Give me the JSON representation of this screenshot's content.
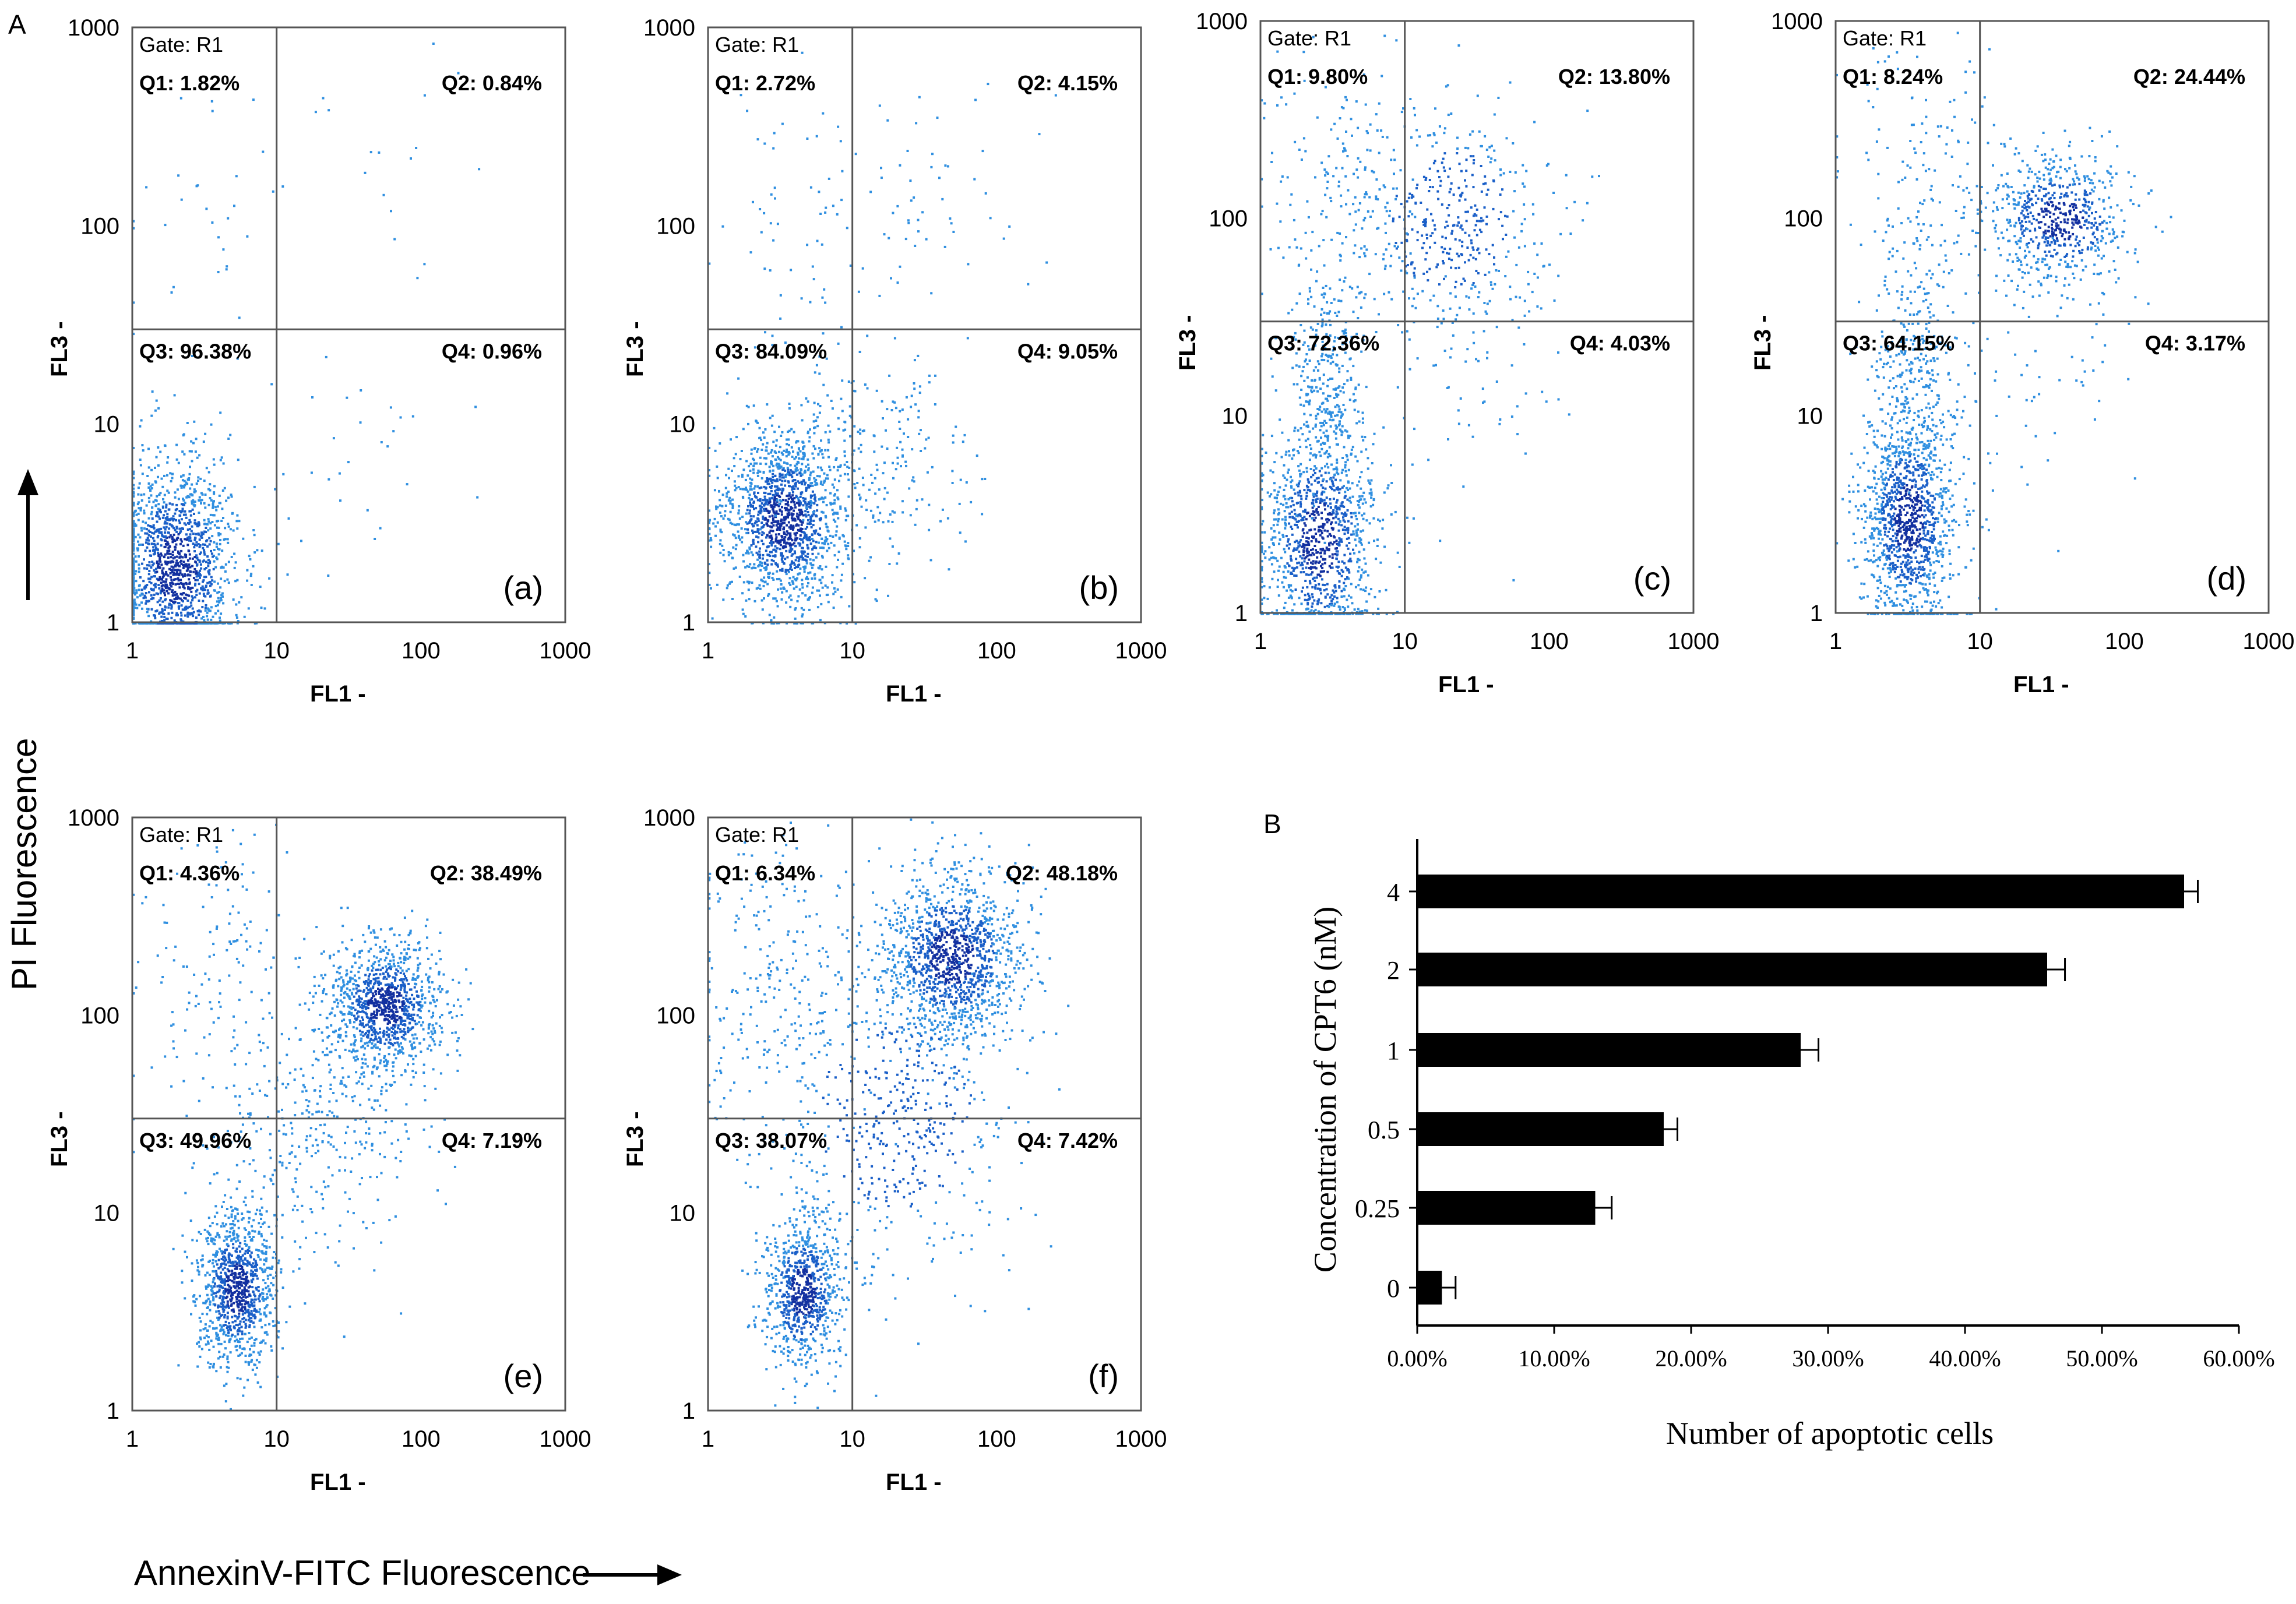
{
  "figure": {
    "panel_a_letter": "A",
    "panel_b_letter": "B",
    "y_axis_title": "PI Fluorescence",
    "x_axis_title": "AnnexinV-FITC Fluorescence"
  },
  "colors": {
    "dots": "#2f8fe0",
    "dots_dense": "#1a5fc8",
    "dots_core": "#1230a0",
    "bar": "#000000"
  },
  "chart_data": [
    {
      "type": "scatter",
      "panel": "(a)",
      "gate": "Gate: R1",
      "quadrants": {
        "q1": "Q1: 1.82%",
        "q2": "Q2: 0.84%",
        "q3": "Q3: 96.38%",
        "q4": "Q4: 0.96%"
      },
      "xlabel": "FL1 -",
      "ylabel": "FL3 -",
      "xticks": [
        "1",
        "10",
        "100",
        "1000"
      ],
      "yticks": [
        "1",
        "10",
        "100",
        "1000"
      ],
      "xlim": [
        1,
        1000
      ],
      "ylim": [
        1,
        1000
      ],
      "scale": "log",
      "gate_lines": {
        "x": 10,
        "y": 30
      }
    },
    {
      "type": "scatter",
      "panel": "(b)",
      "gate": "Gate: R1",
      "quadrants": {
        "q1": "Q1: 2.72%",
        "q2": "Q2: 4.15%",
        "q3": "Q3: 84.09%",
        "q4": "Q4: 9.05%"
      },
      "xlabel": "FL1 -",
      "ylabel": "FL3 -",
      "xticks": [
        "1",
        "10",
        "100",
        "1000"
      ],
      "yticks": [
        "1",
        "10",
        "100",
        "1000"
      ],
      "xlim": [
        1,
        1000
      ],
      "ylim": [
        1,
        1000
      ],
      "scale": "log",
      "gate_lines": {
        "x": 10,
        "y": 30
      }
    },
    {
      "type": "scatter",
      "panel": "(c)",
      "gate": "Gate: R1",
      "quadrants": {
        "q1": "Q1: 9.80%",
        "q2": "Q2: 13.80%",
        "q3": "Q3: 72.36%",
        "q4": "Q4: 4.03%"
      },
      "xlabel": "FL1 -",
      "ylabel": "FL3 -",
      "xticks": [
        "1",
        "10",
        "100",
        "1000"
      ],
      "yticks": [
        "1",
        "10",
        "100",
        "1000"
      ],
      "xlim": [
        1,
        1000
      ],
      "ylim": [
        1,
        1000
      ],
      "scale": "log",
      "gate_lines": {
        "x": 10,
        "y": 30
      }
    },
    {
      "type": "scatter",
      "panel": "(d)",
      "gate": "Gate: R1",
      "quadrants": {
        "q1": "Q1: 8.24%",
        "q2": "Q2: 24.44%",
        "q3": "Q3: 64.15%",
        "q4": "Q4: 3.17%"
      },
      "xlabel": "FL1 -",
      "ylabel": "FL3 -",
      "xticks": [
        "1",
        "10",
        "100",
        "1000"
      ],
      "yticks": [
        "1",
        "10",
        "100",
        "1000"
      ],
      "xlim": [
        1,
        1000
      ],
      "ylim": [
        1,
        1000
      ],
      "scale": "log",
      "gate_lines": {
        "x": 10,
        "y": 30
      }
    },
    {
      "type": "scatter",
      "panel": "(e)",
      "gate": "Gate: R1",
      "quadrants": {
        "q1": "Q1: 4.36%",
        "q2": "Q2: 38.49%",
        "q3": "Q3: 49.96%",
        "q4": "Q4: 7.19%"
      },
      "xlabel": "FL1 -",
      "ylabel": "FL3 -",
      "xticks": [
        "1",
        "10",
        "100",
        "1000"
      ],
      "yticks": [
        "1",
        "10",
        "100",
        "1000"
      ],
      "xlim": [
        1,
        1000
      ],
      "ylim": [
        1,
        1000
      ],
      "scale": "log",
      "gate_lines": {
        "x": 10,
        "y": 30
      }
    },
    {
      "type": "scatter",
      "panel": "(f)",
      "gate": "Gate: R1",
      "quadrants": {
        "q1": "Q1: 6.34%",
        "q2": "Q2: 48.18%",
        "q3": "Q3: 38.07%",
        "q4": "Q4: 7.42%"
      },
      "xlabel": "FL1 -",
      "ylabel": "FL3 -",
      "xticks": [
        "1",
        "10",
        "100",
        "1000"
      ],
      "yticks": [
        "1",
        "10",
        "100",
        "1000"
      ],
      "xlim": [
        1,
        1000
      ],
      "ylim": [
        1,
        1000
      ],
      "scale": "log",
      "gate_lines": {
        "x": 10,
        "y": 30
      }
    },
    {
      "type": "bar",
      "orientation": "horizontal",
      "categories": [
        "4",
        "2",
        "1",
        "0.5",
        "0.25",
        "0"
      ],
      "values": [
        56.0,
        46.0,
        28.0,
        18.0,
        13.0,
        1.8
      ],
      "errors": [
        1.0,
        1.3,
        1.3,
        1.0,
        1.2,
        1.0
      ],
      "xlabel": "Number of apoptotic cells",
      "ylabel": "Concentration of CPT6 (nM)",
      "xticks": [
        "0.00%",
        "10.00%",
        "20.00%",
        "30.00%",
        "40.00%",
        "50.00%",
        "60.00%"
      ],
      "xlim": [
        0,
        60
      ]
    }
  ]
}
